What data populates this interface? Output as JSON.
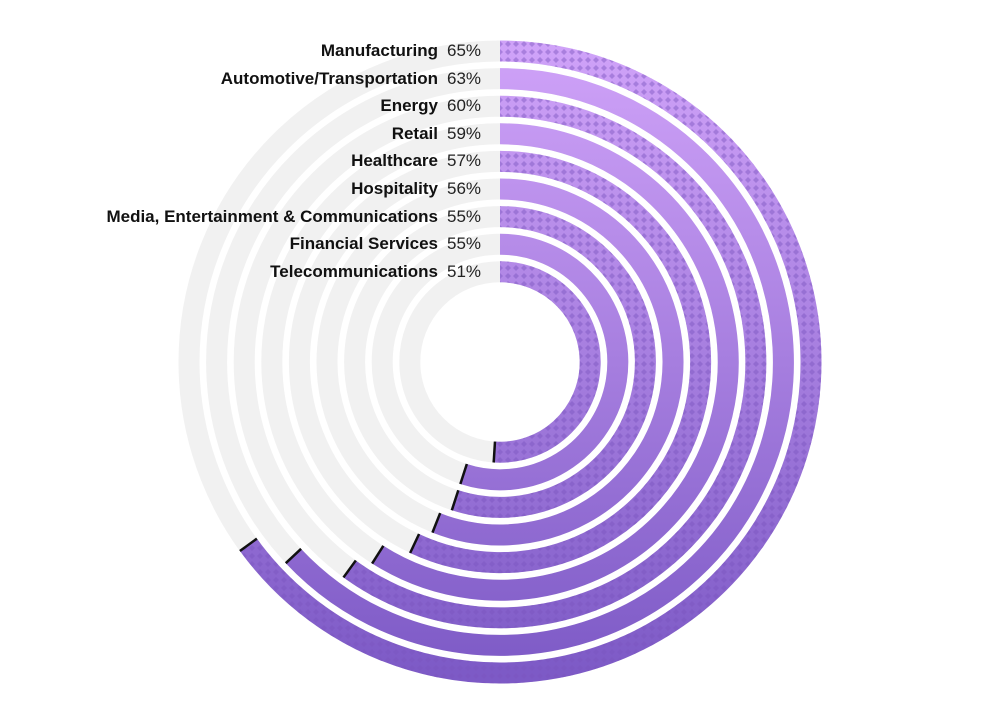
{
  "chart_data": {
    "type": "radial-bar",
    "title": "",
    "unit": "%",
    "max": 100,
    "categories": [
      "Manufacturing",
      "Automotive/Transportation",
      "Energy",
      "Retail",
      "Healthcare",
      "Hospitality",
      "Media, Entertainment & Communications",
      "Financial Services",
      "Telecommunications"
    ],
    "values": [
      65,
      63,
      60,
      59,
      57,
      56,
      55,
      55,
      51
    ],
    "value_labels": [
      "65%",
      "63%",
      "60%",
      "59%",
      "57%",
      "56%",
      "55%",
      "55%",
      "51%"
    ],
    "patterned": [
      true,
      false,
      true,
      false,
      true,
      false,
      true,
      false,
      true
    ],
    "colors": {
      "start": "#cfa2f8",
      "end": "#7d5ac6",
      "track": "#f1f1f1",
      "pattern": "#7a55c0",
      "end_cap": "#111111"
    }
  }
}
